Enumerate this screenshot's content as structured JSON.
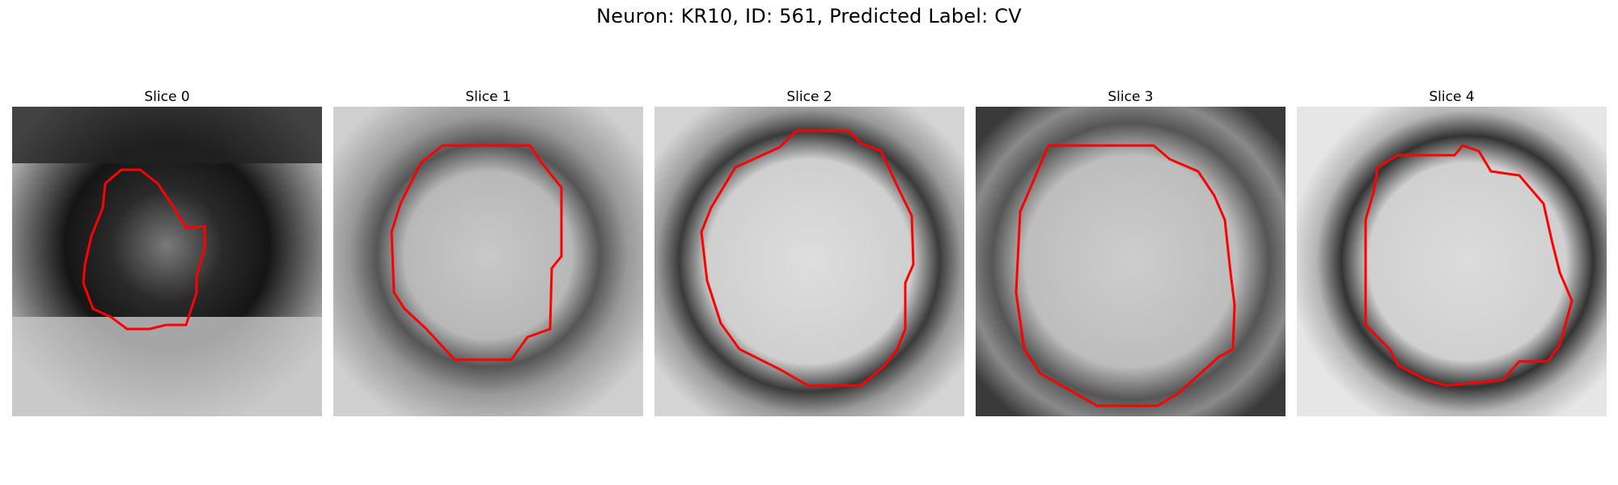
{
  "figure": {
    "title": "Neuron: KR10, ID: 561, Predicted Label: CV"
  },
  "panels": [
    {
      "title": "Slice 0"
    },
    {
      "title": "Slice 1"
    },
    {
      "title": "Slice 2"
    },
    {
      "title": "Slice 3"
    },
    {
      "title": "Slice 4"
    }
  ],
  "contour_color": "#ff0000"
}
